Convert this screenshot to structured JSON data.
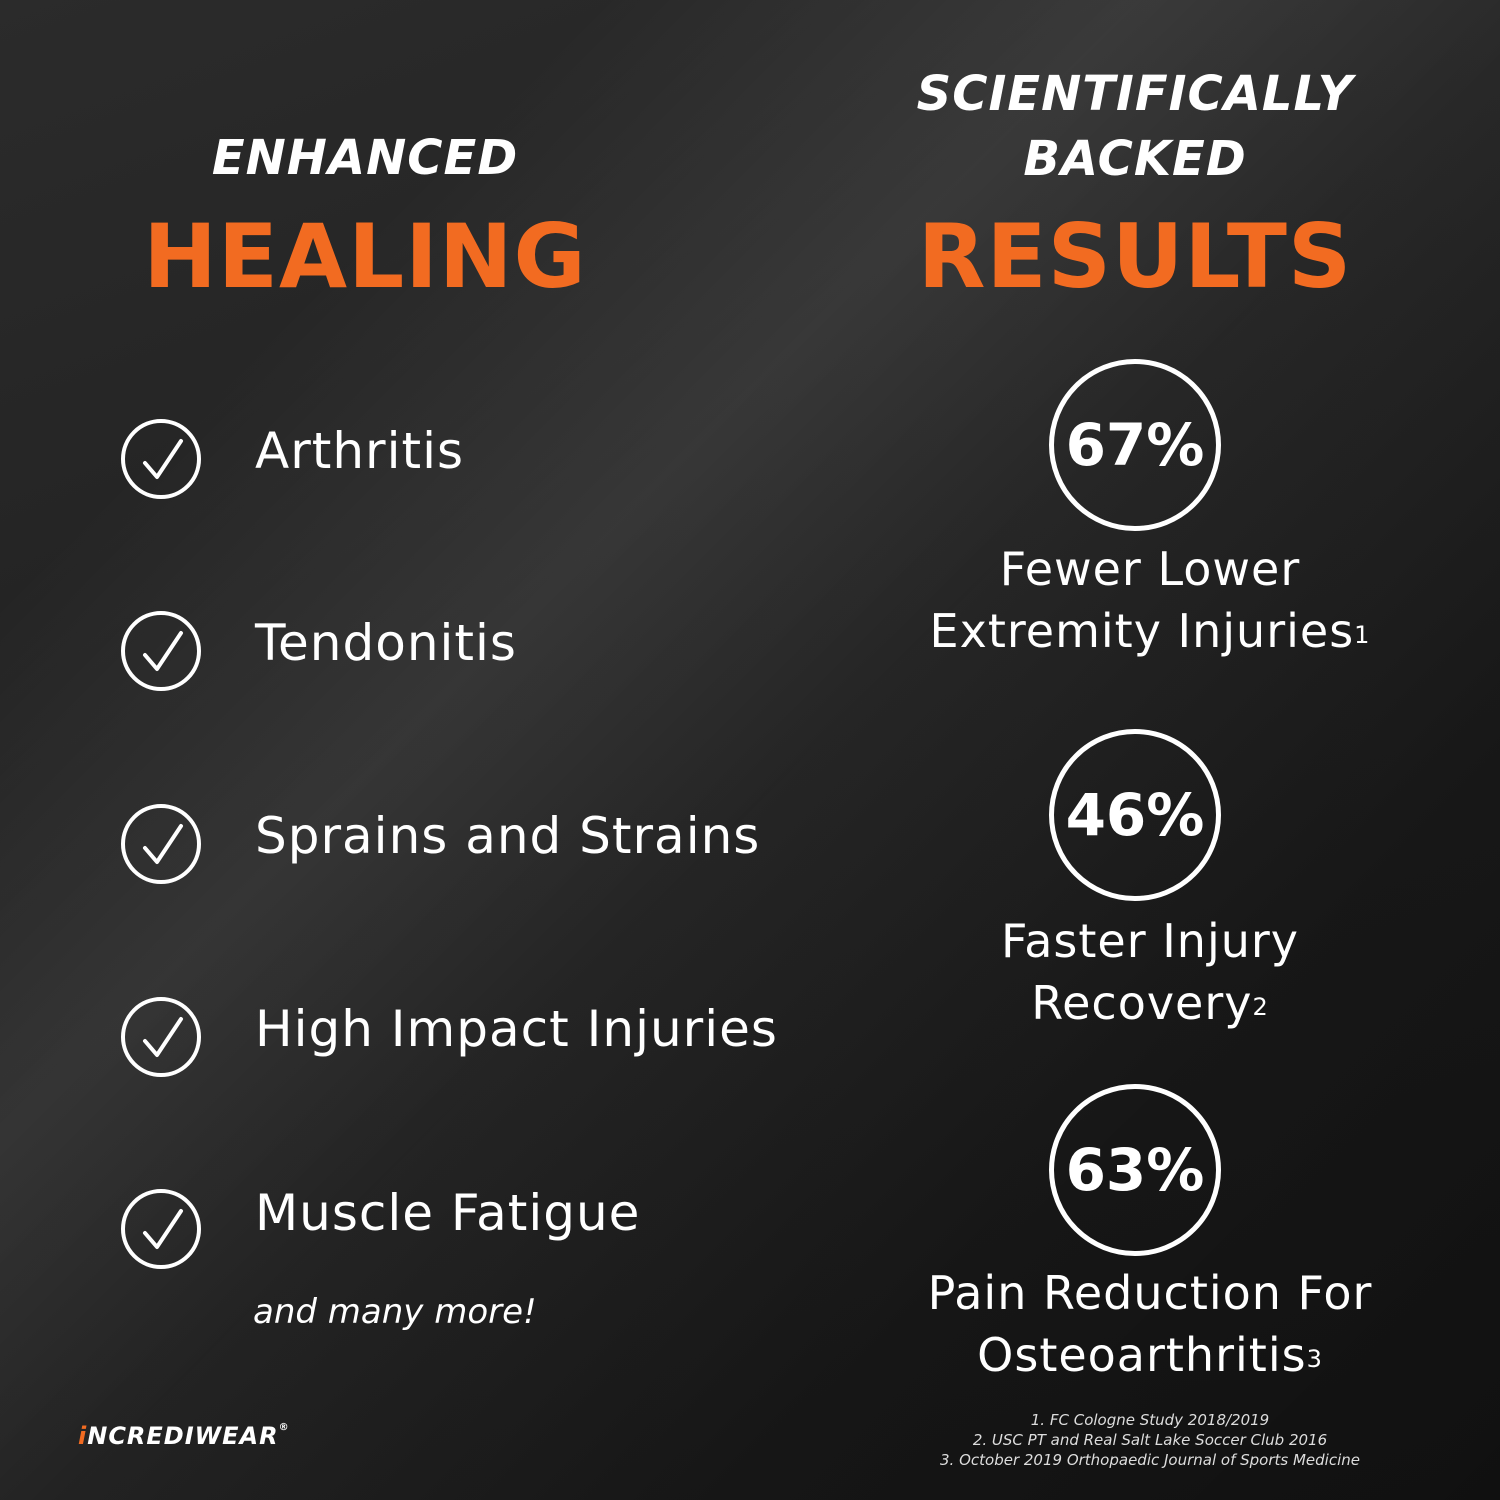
{
  "left": {
    "subtitle": "ENHANCED",
    "title": "HEALING",
    "items": [
      {
        "label": "Arthritis",
        "icon": "check-circle-icon"
      },
      {
        "label": "Tendonitis",
        "icon": "check-circle-icon"
      },
      {
        "label": "Sprains and Strains",
        "icon": "check-circle-icon"
      },
      {
        "label": "High Impact Injuries",
        "icon": "check-circle-icon"
      },
      {
        "label": "Muscle Fatigue",
        "icon": "check-circle-icon"
      }
    ],
    "more": "and many more!"
  },
  "right": {
    "subtitle_line1": "SCIENTIFICALLY",
    "subtitle_line2": "BACKED",
    "title": "RESULTS",
    "stats": [
      {
        "value": "67%",
        "line1": "Fewer Lower",
        "line2": "Extremity Injuries",
        "ref": "1"
      },
      {
        "value": "46%",
        "line1": "Faster Injury",
        "line2": "Recovery",
        "ref": "2"
      },
      {
        "value": "63%",
        "line1": "Pain Reduction For",
        "line2": "Osteoarthritis",
        "ref": "3"
      }
    ],
    "footnotes": [
      "1. FC Cologne Study 2018/2019",
      "2. USC PT and Real Salt Lake Soccer Club 2016",
      "3. October 2019 Orthopaedic Journal of Sports Medicine"
    ]
  },
  "brand": {
    "logo_i": "i",
    "logo_rest": "NCREDIWEAR",
    "registered": "®"
  },
  "colors": {
    "accent": "#f26b21",
    "text": "#ffffff",
    "background": "#1e1e1e"
  }
}
